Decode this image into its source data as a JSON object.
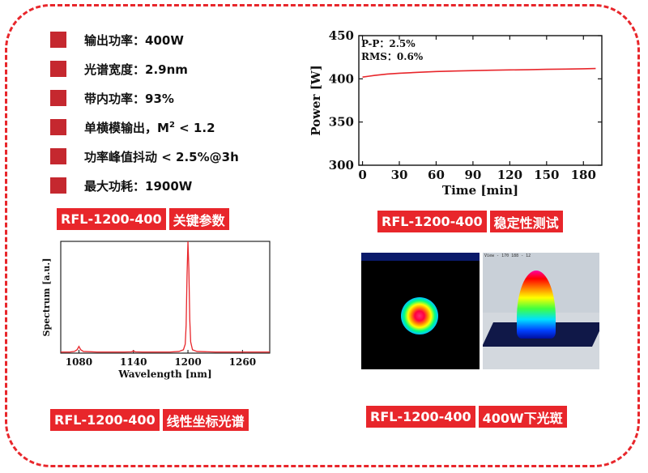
{
  "specs": [
    {
      "label": "输出功率：",
      "value": "400W"
    },
    {
      "label": "光谱宽度：",
      "value": "2.9nm"
    },
    {
      "label": "带内功率：",
      "value": "93%"
    },
    {
      "label": "单横模输出，",
      "pre": "M",
      "sup": "2",
      "value": " < 1.2"
    },
    {
      "label": "功率峰值抖动",
      "value": " < 2.5%@3h"
    },
    {
      "label": "最大功耗：",
      "value": "1900W"
    }
  ],
  "labels": {
    "params": {
      "code": "RFL-1200-400",
      "text": "关键参数"
    },
    "stability": {
      "code": "RFL-1200-400",
      "text": "稳定性测试"
    },
    "spectrum": {
      "code": "RFL-1200-400",
      "text": "线性坐标光谱"
    },
    "beam": {
      "code": "RFL-1200-400",
      "text": "400W下光斑"
    }
  },
  "colors": {
    "accent": "#e8262b",
    "bullet": "#c5282f",
    "curve": "#e8262b"
  },
  "beam_view": {
    "header": "View - 170  188 - 12"
  },
  "chart_data": [
    {
      "type": "line",
      "xlabel": "Time [min]",
      "ylabel": "Power [W]",
      "xlim": [
        -3,
        195
      ],
      "ylim": [
        300,
        450
      ],
      "xticks": [
        0,
        30,
        60,
        90,
        120,
        150,
        180
      ],
      "yticks": [
        300,
        350,
        400,
        450
      ],
      "annotations": [
        "P-P：2.5%",
        "RMS：0.6%"
      ],
      "series": [
        {
          "x": [
            0,
            5,
            10,
            20,
            30,
            45,
            60,
            75,
            90,
            105,
            120,
            135,
            150,
            165,
            180,
            190
          ],
          "y": [
            402,
            403,
            404,
            405.5,
            406.5,
            407.5,
            408.5,
            409,
            409.5,
            410,
            410.3,
            410.6,
            411,
            411.3,
            411.6,
            412
          ]
        }
      ]
    },
    {
      "type": "line",
      "xlabel": "Wavelength [nm]",
      "ylabel": "Spectrum [a.u.]",
      "xlim": [
        1060,
        1290
      ],
      "ylim": [
        0,
        1
      ],
      "xticks": [
        1080,
        1140,
        1200,
        1260
      ],
      "series": [
        {
          "x": [
            1060,
            1070,
            1075,
            1078,
            1080,
            1082,
            1085,
            1100,
            1130,
            1138,
            1140,
            1142,
            1150,
            1180,
            1190,
            1195,
            1197,
            1198,
            1199,
            1200,
            1201,
            1202,
            1203,
            1205,
            1210,
            1230,
            1260,
            1290
          ],
          "y": [
            0.01,
            0.01,
            0.015,
            0.03,
            0.06,
            0.03,
            0.015,
            0.01,
            0.01,
            0.012,
            0.02,
            0.012,
            0.01,
            0.01,
            0.015,
            0.03,
            0.08,
            0.25,
            0.7,
            1.0,
            0.75,
            0.3,
            0.1,
            0.03,
            0.015,
            0.01,
            0.01,
            0.01
          ]
        }
      ]
    }
  ]
}
